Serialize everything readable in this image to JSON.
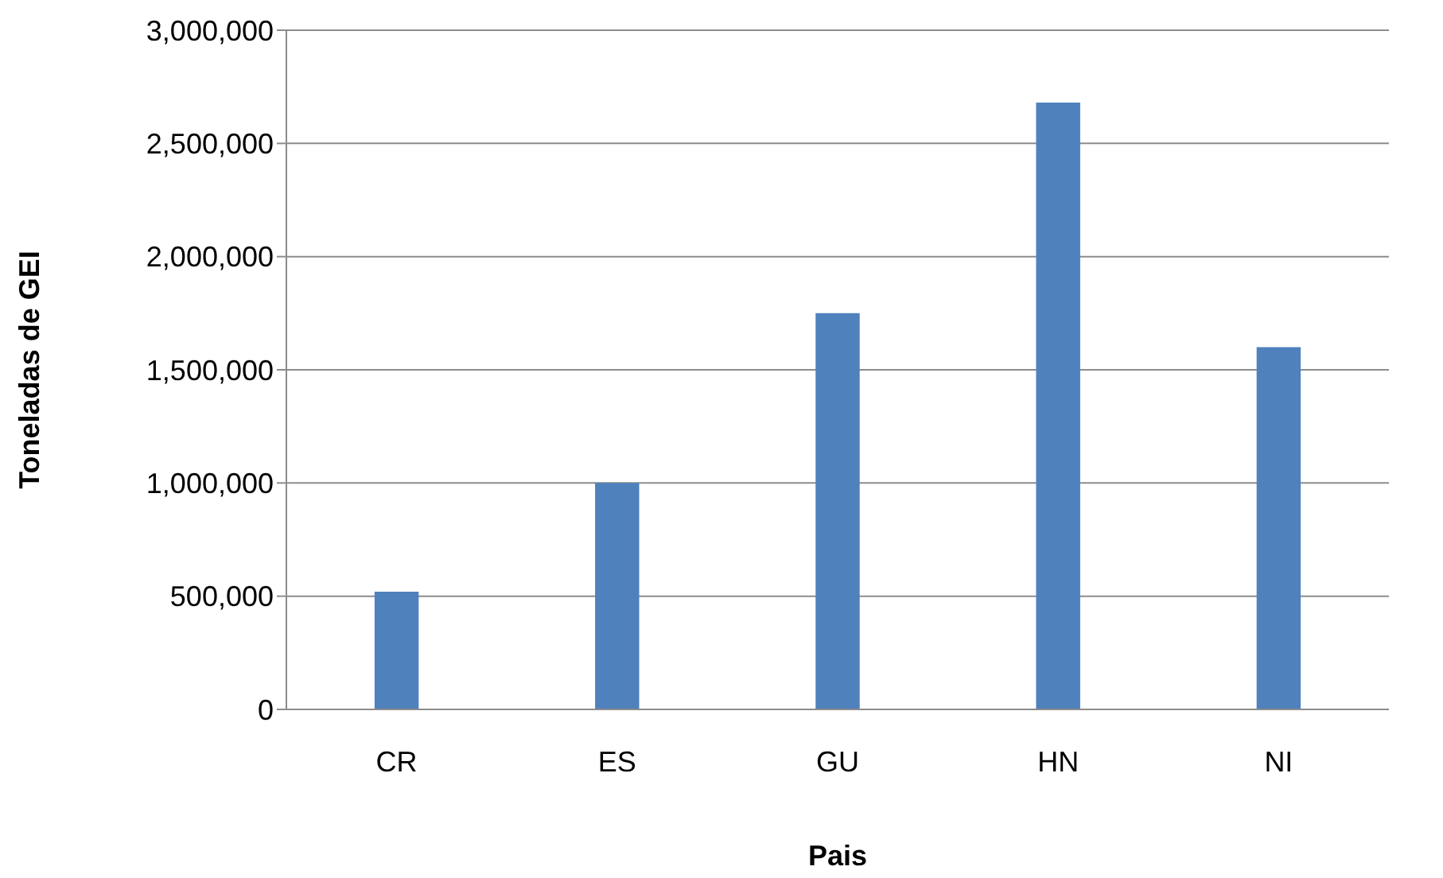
{
  "chart_data": {
    "type": "bar",
    "xlabel": "Pais",
    "ylabel": "Toneladas de GEI",
    "categories": [
      "CR",
      "ES",
      "GU",
      "HN",
      "NI"
    ],
    "values": [
      520000,
      1000000,
      1750000,
      2680000,
      1600000
    ],
    "color": "#4f81bd",
    "ylim": [
      0,
      3000000
    ],
    "yticks": [
      {
        "value": 0,
        "label": "0"
      },
      {
        "value": 500000,
        "label": "500,000"
      },
      {
        "value": 1000000,
        "label": "1,000,000"
      },
      {
        "value": 1500000,
        "label": "1,500,000"
      },
      {
        "value": 2000000,
        "label": "2,000,000"
      },
      {
        "value": 2500000,
        "label": "2,500,000"
      },
      {
        "value": 3000000,
        "label": "3,000,000"
      }
    ],
    "grid": "y",
    "legend": false
  }
}
